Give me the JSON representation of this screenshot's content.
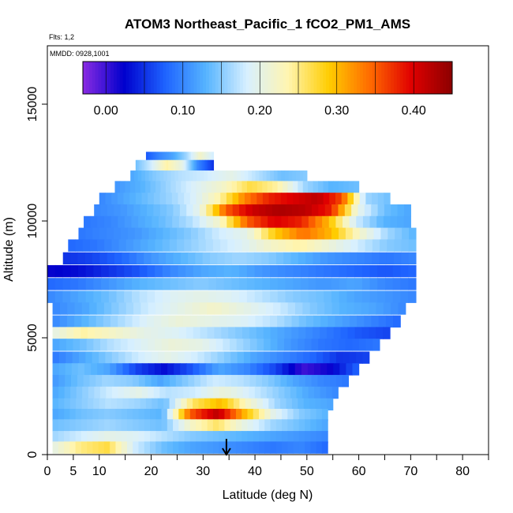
{
  "chart_data": {
    "type": "heatmap",
    "title": "ATOM3 Northeast_Pacific_1 fCO2_PM1_AMS",
    "flights_label": "Flts: 1,2",
    "dates_label": "MMDD: 0928,1001",
    "xlabel": "Latitude (deg N)",
    "ylabel": "Altitude (m)",
    "xlim": [
      0,
      85
    ],
    "ylim": [
      0,
      17500
    ],
    "x_ticks": [
      0,
      5,
      10,
      20,
      30,
      40,
      50,
      60,
      70,
      80
    ],
    "x_tick_labels": [
      "0",
      "5",
      "10",
      "20",
      "30",
      "40",
      "50",
      "60",
      "70",
      "80"
    ],
    "y_ticks": [
      0,
      5000,
      10000,
      15000
    ],
    "y_tick_labels": [
      "0",
      "5000",
      "10000",
      "15000"
    ],
    "colorbar": {
      "min": -0.03,
      "max": 0.45,
      "ticks": [
        0.0,
        0.1,
        0.2,
        0.3,
        0.4
      ],
      "tick_labels": [
        "0.00",
        "0.10",
        "0.20",
        "0.30",
        "0.40"
      ],
      "colors": [
        "#8a2be2",
        "#0000cd",
        "#1e63ff",
        "#56b4ff",
        "#d8f0ff",
        "#fff5b0",
        "#ffcc00",
        "#ff6a00",
        "#e00000",
        "#8b0000"
      ]
    },
    "marker": {
      "latitude": 34.5,
      "note": "arrow marking a latitude"
    },
    "layers": [
      {
        "alt": 12700,
        "lat_min": 19,
        "lat_max": 32,
        "values": [
          0.07,
          0.1,
          0.12,
          0.16,
          0.22,
          0.18
        ]
      },
      {
        "alt": 12350,
        "lat_min": 17,
        "lat_max": 32,
        "values": [
          0.14,
          0.18,
          0.24,
          0.2,
          0.1,
          0.05
        ]
      },
      {
        "alt": 11900,
        "lat_min": 16,
        "lat_max": 50,
        "values": [
          0.12,
          0.15,
          0.17,
          0.18,
          0.2,
          0.17,
          0.14,
          0.15
        ]
      },
      {
        "alt": 11450,
        "lat_min": 13,
        "lat_max": 60,
        "values": [
          0.11,
          0.13,
          0.16,
          0.19,
          0.22,
          0.27,
          0.24,
          0.16,
          0.13,
          0.14
        ]
      },
      {
        "alt": 10950,
        "lat_min": 10,
        "lat_max": 66,
        "values": [
          0.1,
          0.12,
          0.14,
          0.16,
          0.19,
          0.24,
          0.33,
          0.38,
          0.4,
          0.42,
          0.36,
          0.16,
          0.14
        ]
      },
      {
        "alt": 10450,
        "lat_min": 9,
        "lat_max": 70,
        "values": [
          0.1,
          0.11,
          0.13,
          0.15,
          0.2,
          0.35,
          0.41,
          0.43,
          0.42,
          0.38,
          0.2,
          0.14,
          0.12
        ]
      },
      {
        "alt": 9950,
        "lat_min": 7,
        "lat_max": 70,
        "values": [
          0.09,
          0.1,
          0.12,
          0.14,
          0.17,
          0.22,
          0.35,
          0.4,
          0.38,
          0.3,
          0.18,
          0.13,
          0.12
        ]
      },
      {
        "alt": 9450,
        "lat_min": 6,
        "lat_max": 71,
        "values": [
          0.09,
          0.1,
          0.11,
          0.13,
          0.15,
          0.18,
          0.2,
          0.29,
          0.34,
          0.3,
          0.22,
          0.16,
          0.13
        ]
      },
      {
        "alt": 8950,
        "lat_min": 4,
        "lat_max": 71,
        "values": [
          0.08,
          0.09,
          0.11,
          0.13,
          0.15,
          0.17,
          0.19,
          0.22,
          0.24,
          0.21,
          0.18,
          0.15,
          0.14
        ]
      },
      {
        "alt": 8400,
        "lat_min": 3,
        "lat_max": 71,
        "values": [
          0.05,
          0.06,
          0.08,
          0.11,
          0.13,
          0.15,
          0.16,
          0.15,
          0.13,
          0.11,
          0.1,
          0.09,
          0.1
        ]
      },
      {
        "alt": 7850,
        "lat_min": 0,
        "lat_max": 71,
        "values": [
          0.02,
          0.03,
          0.05,
          0.07,
          0.1,
          0.12,
          0.13,
          0.11,
          0.1,
          0.09,
          0.08,
          0.07,
          0.08
        ]
      },
      {
        "alt": 7300,
        "lat_min": 0,
        "lat_max": 71,
        "values": [
          0.08,
          0.09,
          0.11,
          0.13,
          0.14,
          0.15,
          0.14,
          0.13,
          0.12,
          0.11,
          0.12,
          0.1,
          0.09
        ]
      },
      {
        "alt": 6750,
        "lat_min": 0,
        "lat_max": 71,
        "values": [
          0.1,
          0.12,
          0.14,
          0.17,
          0.19,
          0.2,
          0.19,
          0.17,
          0.15,
          0.14,
          0.12,
          0.11,
          0.1
        ]
      },
      {
        "alt": 6250,
        "lat_min": 1,
        "lat_max": 69,
        "values": [
          0.1,
          0.12,
          0.15,
          0.18,
          0.2,
          0.22,
          0.2,
          0.18,
          0.15,
          0.13,
          0.12,
          0.1
        ]
      },
      {
        "alt": 5700,
        "lat_min": 1,
        "lat_max": 68,
        "values": [
          0.1,
          0.13,
          0.16,
          0.19,
          0.21,
          0.2,
          0.19,
          0.17,
          0.14,
          0.12,
          0.1,
          0.08
        ]
      },
      {
        "alt": 5200,
        "lat_min": 1,
        "lat_max": 66,
        "values": [
          0.2,
          0.24,
          0.22,
          0.2,
          0.19,
          0.17,
          0.15,
          0.13,
          0.11,
          0.09,
          0.07,
          0.06
        ]
      },
      {
        "alt": 4700,
        "lat_min": 1,
        "lat_max": 64,
        "values": [
          0.12,
          0.14,
          0.17,
          0.19,
          0.21,
          0.2,
          0.17,
          0.14,
          0.11,
          0.09,
          0.08,
          0.09
        ]
      },
      {
        "alt": 4150,
        "lat_min": 1,
        "lat_max": 62,
        "values": [
          0.09,
          0.12,
          0.15,
          0.18,
          0.2,
          0.18,
          0.15,
          0.12,
          0.1,
          0.08,
          0.05,
          0.06
        ]
      },
      {
        "alt": 3650,
        "lat_min": 1,
        "lat_max": 60,
        "values": [
          0.12,
          0.14,
          0.12,
          0.06,
          0.03,
          0.07,
          0.12,
          0.1,
          0.06,
          0.0,
          0.02,
          0.08
        ]
      },
      {
        "alt": 3150,
        "lat_min": 1,
        "lat_max": 58,
        "values": [
          0.11,
          0.14,
          0.16,
          0.15,
          0.12,
          0.15,
          0.18,
          0.17,
          0.15,
          0.12,
          0.1,
          0.09
        ]
      },
      {
        "alt": 2650,
        "lat_min": 1,
        "lat_max": 56,
        "values": [
          0.12,
          0.15,
          0.18,
          0.2,
          0.17,
          0.18,
          0.21,
          0.18,
          0.15,
          0.12,
          0.1
        ]
      },
      {
        "alt": 2150,
        "lat_min": 1,
        "lat_max": 55,
        "values": [
          0.13,
          0.15,
          0.17,
          0.16,
          0.14,
          0.26,
          0.3,
          0.22,
          0.16,
          0.13,
          0.12
        ]
      },
      {
        "alt": 1700,
        "lat_min": 1,
        "lat_max": 54,
        "values": [
          0.12,
          0.14,
          0.15,
          0.14,
          0.13,
          0.35,
          0.42,
          0.3,
          0.2,
          0.15,
          0.13
        ]
      },
      {
        "alt": 1250,
        "lat_min": 1,
        "lat_max": 54,
        "values": [
          0.14,
          0.15,
          0.16,
          0.15,
          0.14,
          0.22,
          0.26,
          0.2,
          0.16,
          0.14,
          0.12
        ]
      },
      {
        "alt": 750,
        "lat_min": 1,
        "lat_max": 54,
        "values": [
          0.16,
          0.18,
          0.2,
          0.19,
          0.17,
          0.15,
          0.14,
          0.13,
          0.12,
          0.11,
          0.1
        ]
      },
      {
        "alt": 300,
        "lat_min": 1,
        "lat_max": 54,
        "values": [
          0.2,
          0.25,
          0.27,
          0.18,
          0.14,
          0.12,
          0.11,
          0.1,
          0.09,
          0.1,
          0.08
        ]
      }
    ]
  }
}
